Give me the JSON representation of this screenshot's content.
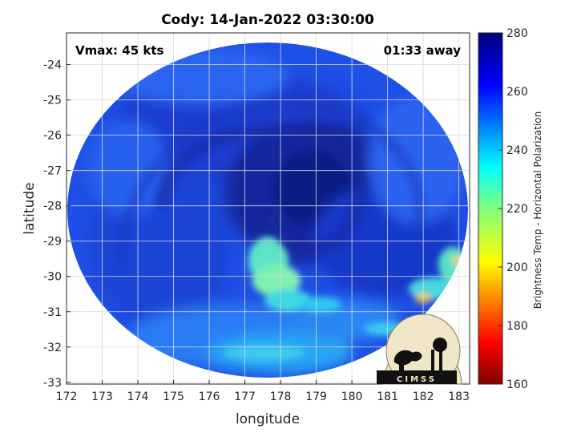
{
  "chart_data": {
    "type": "heatmap",
    "title": "Cody: 14-Jan-2022 03:30:00",
    "xlabel": "longitude",
    "ylabel": "latitude",
    "xlim": [
      172,
      183.3
    ],
    "ylim": [
      -33.05,
      -23.1
    ],
    "x_ticks": [
      "172",
      "173",
      "174",
      "175",
      "176",
      "177",
      "178",
      "179",
      "180",
      "181",
      "182",
      "183"
    ],
    "y_ticks": [
      "-24",
      "-25",
      "-26",
      "-27",
      "-28",
      "-29",
      "-30",
      "-31",
      "-32",
      "-33"
    ],
    "grid": true,
    "annotations": {
      "vmax": "Vmax: 45 kts",
      "offset": "01:33 away"
    },
    "colorbar": {
      "label": "Brightness Temp - Horizontal Polarization",
      "range": [
        160,
        280
      ],
      "ticks": [
        "160",
        "180",
        "200",
        "220",
        "240",
        "260",
        "280"
      ],
      "colormap": "jet"
    },
    "logo_text": "CIMSS"
  }
}
